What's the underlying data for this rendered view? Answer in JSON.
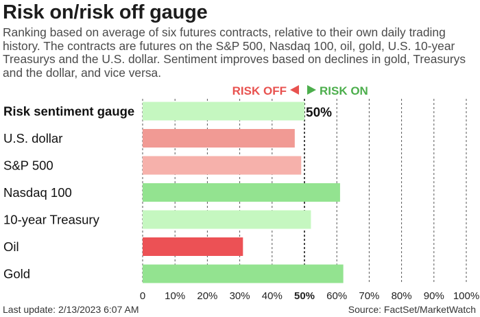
{
  "header": {
    "title": "Risk on/risk off gauge",
    "subtitle": "Ranking based on average of six futures contracts, relative to their own daily trading history. The contracts are futures on the S&P 500, Nasdaq 100, oil, gold, U.S. 10-year Treasurys and the U.S. dollar. Sentiment improves based on declines in gold, Treasurys and the dollar, and vice versa."
  },
  "legend": {
    "risk_off": "RISK OFF",
    "risk_on": "RISK ON",
    "risk_off_color": "#e8524f",
    "risk_on_color": "#4cae4c"
  },
  "chart_data": {
    "type": "bar",
    "orientation": "horizontal",
    "categories": [
      "Risk sentiment gauge",
      "U.S. dollar",
      "S&P 500",
      "Nasdaq 100",
      "10-year Treasury",
      "Oil",
      "Gold"
    ],
    "values": [
      50,
      47,
      49,
      61,
      52,
      31,
      62
    ],
    "bar_colors": [
      "#c5f7c0",
      "#f19a94",
      "#f6b1ab",
      "#93e390",
      "#c5f7c0",
      "#ec5155",
      "#93e390"
    ],
    "data_labels": [
      "50%",
      "",
      "",
      "",
      "",
      "",
      ""
    ],
    "x_ticks": [
      "0",
      "10%",
      "20%",
      "30%",
      "40%",
      "50%",
      "60%",
      "70%",
      "80%",
      "90%",
      "100%"
    ],
    "xlim": [
      0,
      100
    ],
    "grid": "vertical dashed",
    "highlight_tick": "50%"
  },
  "footer": {
    "last_update": "Last update: 2/13/2023 6:07 AM",
    "source": "Source: FactSet/MarketWatch"
  }
}
